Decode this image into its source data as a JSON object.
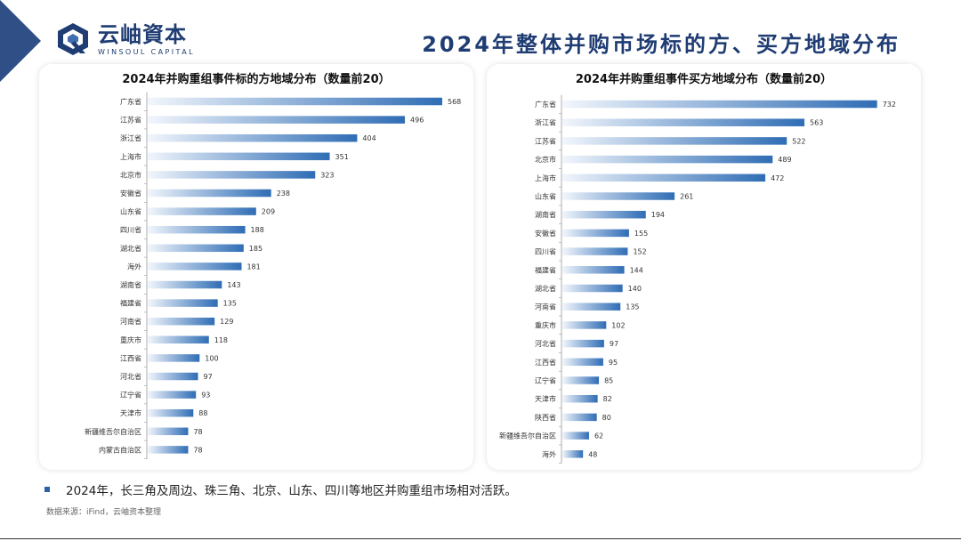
{
  "logo": {
    "cn": "云岫資本",
    "en": "WINSOUL CAPITAL"
  },
  "page_title": "2024年整体并购市场标的方、买方地域分布",
  "colors": {
    "brand": "#1f3c73",
    "bar_dark": "#2f6db5",
    "bar_light": "#f2f6fc"
  },
  "chart_data": [
    {
      "type": "bar",
      "orientation": "horizontal",
      "title": "2024年并购重组事件标的方地域分布（数量前20）",
      "categories": [
        "广东省",
        "江苏省",
        "浙江省",
        "上海市",
        "北京市",
        "安徽省",
        "山东省",
        "四川省",
        "湖北省",
        "海外",
        "湖南省",
        "福建省",
        "河南省",
        "重庆市",
        "江西省",
        "河北省",
        "辽宁省",
        "天津市",
        "新疆维吾尔自治区",
        "内蒙古自治区"
      ],
      "values": [
        568,
        496,
        404,
        351,
        323,
        238,
        209,
        188,
        185,
        181,
        143,
        135,
        129,
        118,
        100,
        97,
        93,
        88,
        78,
        78
      ],
      "xlim": [
        0,
        580
      ]
    },
    {
      "type": "bar",
      "orientation": "horizontal",
      "title": "2024年并购重组事件买方地域分布（数量前20）",
      "categories": [
        "广东省",
        "浙江省",
        "江苏省",
        "北京市",
        "上海市",
        "山东省",
        "湖南省",
        "安徽省",
        "四川省",
        "福建省",
        "湖北省",
        "河南省",
        "重庆市",
        "河北省",
        "江西省",
        "辽宁省",
        "天津市",
        "陕西省",
        "新疆维吾尔自治区",
        "海外"
      ],
      "values": [
        732,
        563,
        522,
        489,
        472,
        261,
        194,
        155,
        152,
        144,
        140,
        135,
        102,
        97,
        95,
        85,
        82,
        80,
        62,
        48
      ],
      "xlim": [
        0,
        745
      ]
    }
  ],
  "bullet": "2024年，长三角及周边、珠三角、北京、山东、四川等地区并购重组市场相对活跃。",
  "source": "数据来源：iFind，云岫资本整理"
}
